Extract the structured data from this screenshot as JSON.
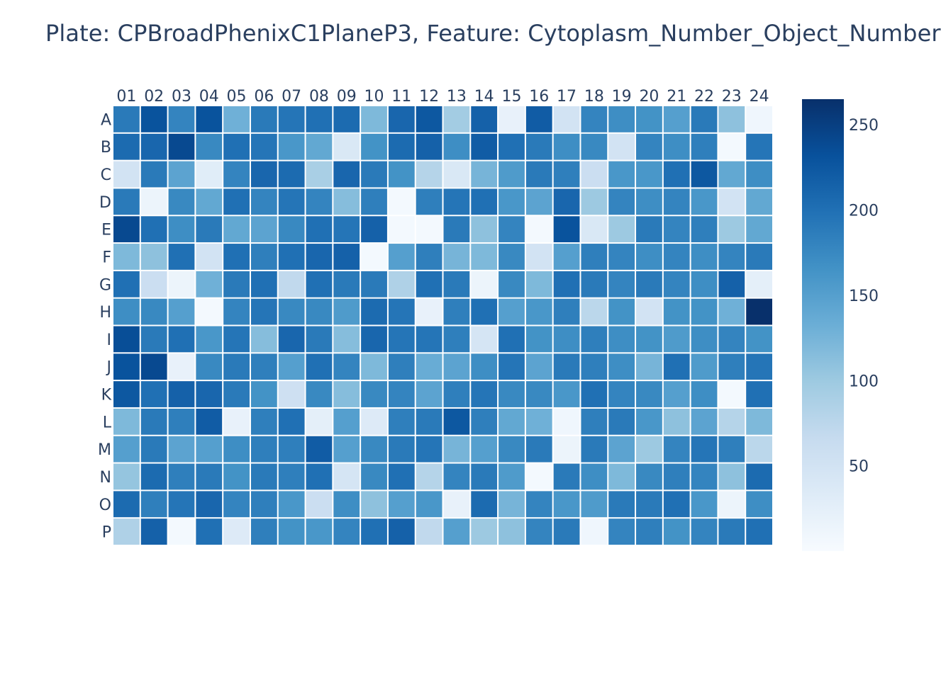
{
  "chart_data": {
    "type": "heatmap",
    "title": "Plate: CPBroadPhenixC1PlaneP3, Feature: Cytoplasm_Number_Object_Number",
    "xlabel": "",
    "ylabel": "",
    "x_categories": [
      "01",
      "02",
      "03",
      "04",
      "05",
      "06",
      "07",
      "08",
      "09",
      "10",
      "11",
      "12",
      "13",
      "14",
      "15",
      "16",
      "17",
      "18",
      "19",
      "20",
      "21",
      "22",
      "23",
      "24"
    ],
    "y_categories": [
      "A",
      "B",
      "C",
      "D",
      "E",
      "F",
      "G",
      "H",
      "I",
      "J",
      "K",
      "L",
      "M",
      "N",
      "O",
      "P"
    ],
    "colorscale": [
      "#f7fbff",
      "#deebf7",
      "#c6dbef",
      "#9ecae1",
      "#6baed6",
      "#4292c6",
      "#2171b5",
      "#08519c",
      "#08306b"
    ],
    "zmin": 0,
    "zmax": 265,
    "colorbar_ticks": [
      50,
      100,
      150,
      200,
      250
    ],
    "grid": false,
    "values": [
      [
        190,
        230,
        180,
        230,
        130,
        190,
        195,
        200,
        205,
        120,
        210,
        225,
        95,
        215,
        20,
        220,
        50,
        180,
        170,
        165,
        150,
        190,
        110,
        10
      ],
      [
        205,
        210,
        240,
        175,
        200,
        195,
        160,
        140,
        40,
        165,
        205,
        215,
        170,
        220,
        200,
        190,
        170,
        175,
        50,
        180,
        170,
        185,
        5,
        195
      ],
      [
        50,
        190,
        145,
        30,
        180,
        210,
        205,
        90,
        210,
        190,
        165,
        80,
        40,
        125,
        155,
        190,
        185,
        60,
        160,
        160,
        200,
        225,
        140,
        170
      ],
      [
        190,
        15,
        175,
        140,
        200,
        180,
        195,
        180,
        115,
        185,
        5,
        185,
        195,
        200,
        160,
        145,
        210,
        100,
        180,
        170,
        180,
        160,
        50,
        140
      ],
      [
        240,
        200,
        170,
        190,
        140,
        145,
        175,
        200,
        195,
        215,
        5,
        5,
        190,
        110,
        180,
        5,
        230,
        40,
        100,
        190,
        180,
        185,
        100,
        140
      ],
      [
        120,
        110,
        200,
        50,
        200,
        185,
        200,
        210,
        215,
        5,
        150,
        185,
        125,
        120,
        175,
        50,
        150,
        185,
        180,
        170,
        180,
        170,
        180,
        190
      ],
      [
        200,
        60,
        15,
        130,
        190,
        200,
        70,
        200,
        190,
        190,
        85,
        200,
        190,
        15,
        175,
        120,
        200,
        190,
        180,
        190,
        180,
        170,
        215,
        25
      ],
      [
        170,
        175,
        150,
        5,
        180,
        195,
        175,
        175,
        155,
        205,
        195,
        20,
        185,
        200,
        150,
        160,
        185,
        75,
        165,
        50,
        165,
        165,
        130,
        265
      ],
      [
        235,
        190,
        200,
        160,
        195,
        115,
        210,
        190,
        115,
        210,
        195,
        195,
        185,
        45,
        200,
        165,
        170,
        185,
        170,
        165,
        155,
        170,
        180,
        165
      ],
      [
        230,
        240,
        20,
        175,
        190,
        185,
        150,
        200,
        180,
        120,
        185,
        135,
        145,
        170,
        195,
        145,
        190,
        185,
        170,
        125,
        200,
        155,
        185,
        195
      ],
      [
        225,
        200,
        215,
        210,
        190,
        165,
        55,
        175,
        115,
        175,
        180,
        145,
        185,
        195,
        175,
        175,
        160,
        200,
        180,
        175,
        150,
        170,
        5,
        200
      ],
      [
        120,
        190,
        185,
        220,
        20,
        185,
        200,
        25,
        150,
        35,
        185,
        190,
        225,
        185,
        140,
        130,
        10,
        185,
        190,
        160,
        110,
        145,
        80,
        120
      ],
      [
        150,
        190,
        145,
        150,
        170,
        185,
        185,
        220,
        150,
        175,
        190,
        195,
        125,
        150,
        175,
        190,
        15,
        190,
        145,
        100,
        180,
        195,
        185,
        75
      ],
      [
        105,
        205,
        185,
        190,
        165,
        190,
        185,
        200,
        45,
        175,
        200,
        80,
        180,
        190,
        155,
        5,
        190,
        170,
        120,
        175,
        185,
        180,
        110,
        205
      ],
      [
        205,
        185,
        195,
        210,
        180,
        185,
        160,
        60,
        170,
        110,
        150,
        160,
        20,
        205,
        125,
        180,
        160,
        155,
        190,
        190,
        200,
        160,
        15,
        170
      ],
      [
        85,
        215,
        5,
        200,
        35,
        185,
        165,
        160,
        180,
        200,
        215,
        70,
        150,
        100,
        110,
        180,
        190,
        10,
        180,
        185,
        165,
        180,
        190,
        200
      ]
    ]
  }
}
